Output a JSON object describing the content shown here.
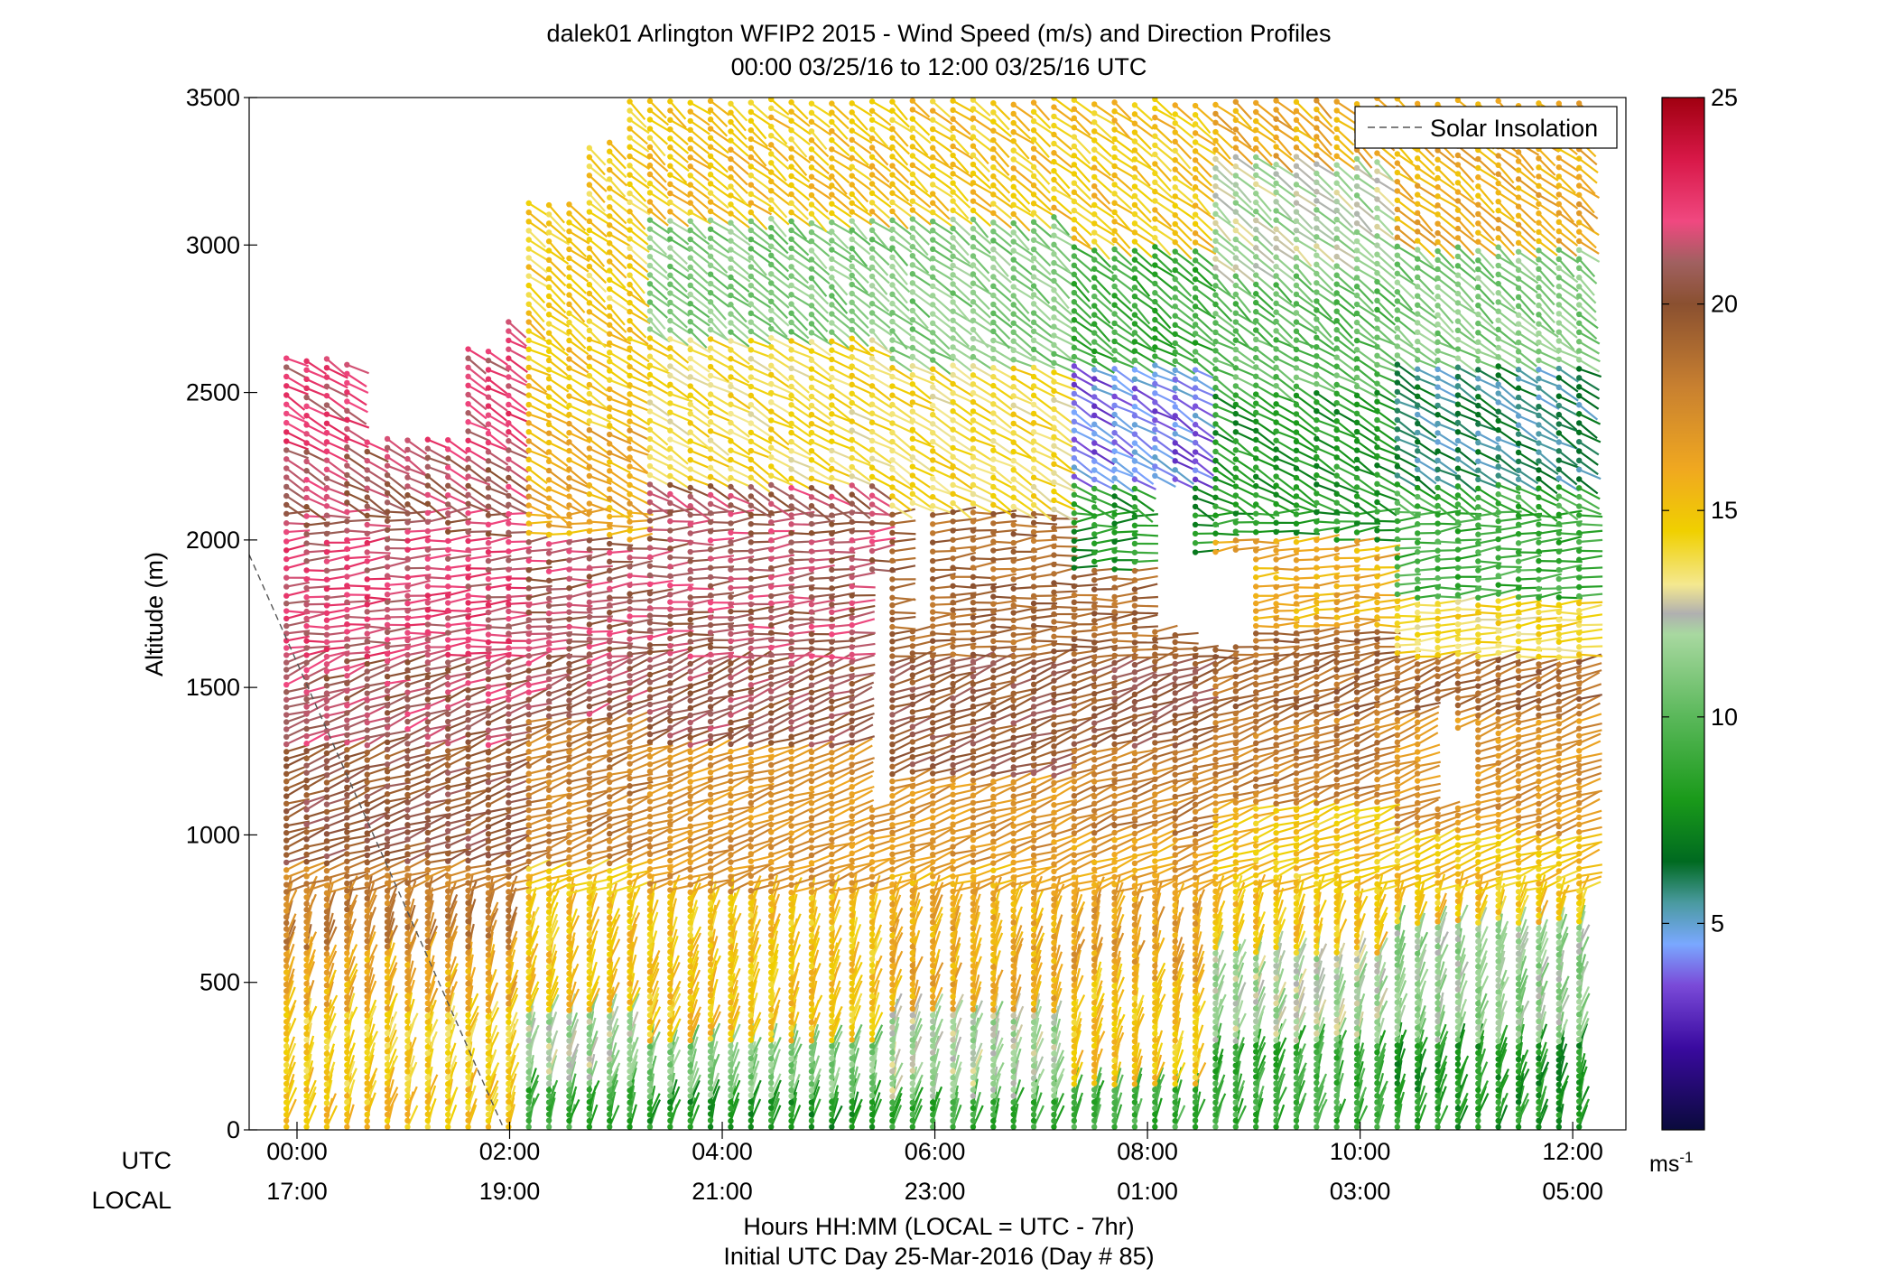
{
  "title": {
    "line1": "dalek01 Arlington WFIP2 2015 - Wind Speed (m/s) and Direction Profiles",
    "line2": "00:00 03/25/16 to 12:00 03/25/16  UTC"
  },
  "footer": {
    "line1": "Hours HH:MM  (LOCAL = UTC - 7hr)",
    "line2": "Initial UTC Day 25-Mar-2016 (Day # 85)"
  },
  "row_labels": {
    "utc": "UTC",
    "local": "LOCAL"
  },
  "legend": {
    "label": "Solar Insolation"
  },
  "colorbar": {
    "min": 0,
    "max": 25,
    "ticks": [
      5,
      10,
      15,
      20,
      25
    ],
    "unit_base": "ms",
    "unit_exp": "-1",
    "stops": [
      {
        "v": 0,
        "c": "#0a0a3c"
      },
      {
        "v": 2,
        "c": "#3a0aa0"
      },
      {
        "v": 3.5,
        "c": "#7a4ad8"
      },
      {
        "v": 4.5,
        "c": "#7aa8ff"
      },
      {
        "v": 5.5,
        "c": "#4a9aa0"
      },
      {
        "v": 6.5,
        "c": "#006a20"
      },
      {
        "v": 8,
        "c": "#1a9a1a"
      },
      {
        "v": 10,
        "c": "#5ab85a"
      },
      {
        "v": 12,
        "c": "#a8d8a0"
      },
      {
        "v": 12.5,
        "c": "#b0b0b0"
      },
      {
        "v": 13.2,
        "c": "#f4e890"
      },
      {
        "v": 14.5,
        "c": "#f0d000"
      },
      {
        "v": 16,
        "c": "#f0a820"
      },
      {
        "v": 18,
        "c": "#c88030"
      },
      {
        "v": 20,
        "c": "#8a5030"
      },
      {
        "v": 21,
        "c": "#a06060"
      },
      {
        "v": 22,
        "c": "#f04880"
      },
      {
        "v": 23.5,
        "c": "#d81848"
      },
      {
        "v": 25,
        "c": "#a00010"
      }
    ]
  },
  "chart_data": {
    "type": "wind barbs (time-height profile)",
    "title": "dalek01 Arlington WFIP2 2015 - Wind Speed (m/s) and Direction Profiles",
    "subtitle": "00:00 03/25/16 to 12:00 03/25/16  UTC",
    "xlabel": "Hours HH:MM  (LOCAL = UTC - 7hr)",
    "ylabel": "Altitude (m)",
    "xlim_hours": [
      -0.45,
      12.5
    ],
    "ylim": [
      0,
      3500
    ],
    "yticks": [
      0,
      500,
      1000,
      1500,
      2000,
      2500,
      3000,
      3500
    ],
    "xticks_hours": [
      0,
      2,
      4,
      6,
      8,
      10,
      12
    ],
    "xtick_labels_utc": [
      "00:00",
      "02:00",
      "04:00",
      "06:00",
      "08:00",
      "10:00",
      "12:00"
    ],
    "xtick_labels_local": [
      "17:00",
      "19:00",
      "21:00",
      "23:00",
      "01:00",
      "03:00",
      "05:00"
    ],
    "solar_insolation_line": {
      "x_hours": [
        -0.45,
        1.95
      ],
      "y": [
        1950,
        0
      ]
    },
    "profile_times_hours": {
      "start": -0.1,
      "end": 12.2,
      "step": 0.19
    },
    "speed_field_ms": {
      "description": "approximate wind speed (m/s) by time segment and altitude band",
      "segments": [
        {
          "t": [
            -0.2,
            2.0
          ],
          "bands": [
            [
              0,
              150,
              15
            ],
            [
              150,
              400,
              14.5
            ],
            [
              400,
              600,
              16
            ],
            [
              600,
              900,
              18
            ],
            [
              900,
              1300,
              20
            ],
            [
              1300,
              1600,
              21
            ],
            [
              1600,
              2000,
              22
            ],
            [
              2000,
              2300,
              21
            ],
            [
              2300,
              2650,
              22
            ]
          ]
        },
        {
          "t": [
            2.0,
            3.2
          ],
          "bands": [
            [
              0,
              150,
              9
            ],
            [
              150,
              400,
              12
            ],
            [
              400,
              900,
              15
            ],
            [
              900,
              1400,
              18
            ],
            [
              1400,
              2000,
              21
            ],
            [
              2000,
              2400,
              16
            ],
            [
              2400,
              2800,
              15
            ],
            [
              2800,
              3500,
              14.5
            ]
          ]
        },
        {
          "t": [
            3.2,
            5.5
          ],
          "bands": [
            [
              0,
              100,
              8
            ],
            [
              100,
              300,
              11
            ],
            [
              300,
              800,
              15
            ],
            [
              800,
              1300,
              17
            ],
            [
              1300,
              1600,
              20.5
            ],
            [
              1600,
              2200,
              21
            ],
            [
              2200,
              2700,
              14
            ],
            [
              2700,
              3100,
              11
            ],
            [
              3100,
              3500,
              15
            ]
          ]
        },
        {
          "t": [
            5.5,
            7.3
          ],
          "bands": [
            [
              0,
              100,
              9
            ],
            [
              100,
              400,
              12
            ],
            [
              400,
              900,
              16
            ],
            [
              900,
              1200,
              17
            ],
            [
              1200,
              1600,
              20
            ],
            [
              1600,
              2100,
              19
            ],
            [
              2100,
              2600,
              14
            ],
            [
              2600,
              3100,
              11
            ],
            [
              3100,
              3500,
              15
            ]
          ]
        },
        {
          "t": [
            7.3,
            8.6
          ],
          "bands": [
            [
              0,
              150,
              9
            ],
            [
              150,
              500,
              15
            ],
            [
              500,
              1000,
              16.5
            ],
            [
              1000,
              1300,
              18
            ],
            [
              1300,
              1600,
              20
            ],
            [
              1600,
              1900,
              19
            ],
            [
              1900,
              2200,
              8
            ],
            [
              2200,
              2600,
              4
            ],
            [
              2600,
              3000,
              9
            ],
            [
              3000,
              3500,
              15
            ]
          ]
        },
        {
          "t": [
            8.6,
            10.2
          ],
          "bands": [
            [
              0,
              300,
              9
            ],
            [
              300,
              600,
              12
            ],
            [
              600,
              1100,
              15
            ],
            [
              1100,
              1400,
              18
            ],
            [
              1400,
              1700,
              19
            ],
            [
              1700,
              2000,
              16
            ],
            [
              2000,
              2500,
              8
            ],
            [
              2500,
              2900,
              10
            ],
            [
              2900,
              3300,
              12
            ],
            [
              3300,
              3500,
              16
            ]
          ]
        },
        {
          "t": [
            10.2,
            12.3
          ],
          "bands": [
            [
              0,
              300,
              8
            ],
            [
              300,
              700,
              11.5
            ],
            [
              700,
              1000,
              15
            ],
            [
              1000,
              1400,
              17
            ],
            [
              1400,
              1600,
              19
            ],
            [
              1600,
              1800,
              14
            ],
            [
              1800,
              2200,
              9
            ],
            [
              2200,
              2600,
              6
            ],
            [
              2600,
              3000,
              11
            ],
            [
              3000,
              3500,
              16
            ]
          ]
        }
      ],
      "max_altitude_by_time": [
        {
          "t": [
            -0.2,
            0.5
          ],
          "top": 2620
        },
        {
          "t": [
            0.5,
            1.5
          ],
          "top": 2350
        },
        {
          "t": [
            1.5,
            2.0
          ],
          "top": 2750
        },
        {
          "t": [
            2.0,
            2.6
          ],
          "top": 3150
        },
        {
          "t": [
            2.6,
            3.0
          ],
          "top": 3350
        },
        {
          "t": [
            3.0,
            12.3
          ],
          "top": 3500
        }
      ],
      "gaps": [
        {
          "t": [
            5.35,
            5.55
          ],
          "alt": [
            1100,
            1900
          ]
        },
        {
          "t": [
            5.65,
            5.8
          ],
          "alt": [
            1700,
            2100
          ]
        },
        {
          "t": [
            8.05,
            8.3
          ],
          "alt": [
            1700,
            2200
          ]
        },
        {
          "t": [
            8.4,
            8.9
          ],
          "alt": [
            1650,
            1950
          ]
        },
        {
          "t": [
            10.6,
            11.1
          ],
          "alt": [
            1100,
            1350
          ]
        },
        {
          "t": [
            10.6,
            10.9
          ],
          "alt": [
            1350,
            1450
          ]
        },
        {
          "t": [
            0.55,
            1.2
          ],
          "alt": [
            2350,
            2620
          ]
        },
        {
          "t": [
            1.6,
            1.9
          ],
          "alt": [
            2650,
            2800
          ]
        }
      ]
    },
    "direction_field_deg": {
      "description": "approximate meteorological wind direction by altitude",
      "bands": [
        [
          0,
          800,
          195
        ],
        [
          800,
          1600,
          250
        ],
        [
          1600,
          2100,
          265
        ],
        [
          2100,
          2700,
          300
        ],
        [
          2700,
          3500,
          310
        ]
      ]
    }
  }
}
